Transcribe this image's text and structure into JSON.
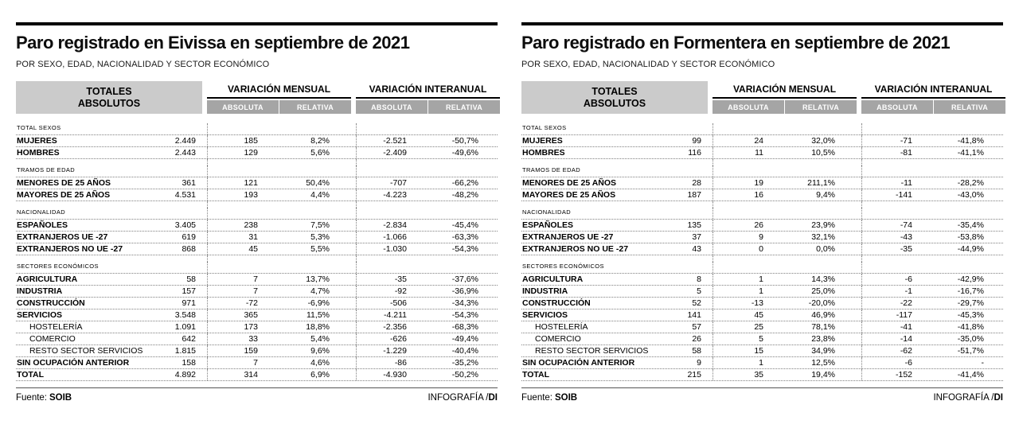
{
  "colors": {
    "totals_header_bg": "#cbcbcb",
    "subheader_bg": "#a5a5a5",
    "subheader_text": "#ffffff",
    "top_rule": "#000000",
    "dotted_line": "#808080"
  },
  "chart_data": [
    {
      "type": "table",
      "title": "Paro registrado en Eivissa en septiembre de 2021",
      "subtitle": "POR SEXO, EDAD, NACIONALIDAD Y SECTOR ECONÓMICO",
      "headers": {
        "totals_line1": "TOTALES",
        "totals_line2": "ABSOLUTOS",
        "monthly": "VARIACIÓN MENSUAL",
        "interannual": "VARIACIÓN INTERANUAL",
        "absolute": "ABSOLUTA",
        "relative": "RELATIVA"
      },
      "rows": [
        {
          "type": "section",
          "label": "TOTAL SEXOS"
        },
        {
          "type": "data",
          "label": "MUJERES",
          "values": [
            "2.449",
            "185",
            "8,2%",
            "-2.521",
            "-50,7%"
          ]
        },
        {
          "type": "data",
          "label": "HOMBRES",
          "values": [
            "2.443",
            "129",
            "5,6%",
            "-2.409",
            "-49,6%"
          ]
        },
        {
          "type": "gap"
        },
        {
          "type": "section",
          "label": "TRAMOS DE EDAD"
        },
        {
          "type": "data",
          "label": "MENORES DE 25 AÑOS",
          "values": [
            "361",
            "121",
            "50,4%",
            "-707",
            "-66,2%"
          ]
        },
        {
          "type": "data",
          "label": "MAYORES DE 25 AÑOS",
          "values": [
            "4.531",
            "193",
            "4,4%",
            "-4.223",
            "-48,2%"
          ]
        },
        {
          "type": "gap"
        },
        {
          "type": "section",
          "label": "NACIONALIDAD"
        },
        {
          "type": "data",
          "label": "ESPAÑOLES",
          "values": [
            "3.405",
            "238",
            "7,5%",
            "-2.834",
            "-45,4%"
          ]
        },
        {
          "type": "data",
          "label": "EXTRANJEROS UE -27",
          "values": [
            "619",
            "31",
            "5,3%",
            "-1.066",
            "-63,3%"
          ]
        },
        {
          "type": "data",
          "label": "EXTRANJEROS NO UE -27",
          "values": [
            "868",
            "45",
            "5,5%",
            "-1.030",
            "-54,3%"
          ]
        },
        {
          "type": "gap"
        },
        {
          "type": "section",
          "label": "SECTORES ECONÓMICOS"
        },
        {
          "type": "data",
          "label": "AGRICULTURA",
          "values": [
            "58",
            "7",
            "13,7%",
            "-35",
            "-37,6%"
          ]
        },
        {
          "type": "data",
          "label": "INDUSTRIA",
          "values": [
            "157",
            "7",
            "4,7%",
            "-92",
            "-36,9%"
          ]
        },
        {
          "type": "data",
          "label": "CONSTRUCCIÓN",
          "values": [
            "971",
            "-72",
            "-6,9%",
            "-506",
            "-34,3%"
          ]
        },
        {
          "type": "data",
          "label": "SERVICIOS",
          "values": [
            "3.548",
            "365",
            "11,5%",
            "-4.211",
            "-54,3%"
          ]
        },
        {
          "type": "data",
          "label": "HOSTELERÍA",
          "indent": true,
          "values": [
            "1.091",
            "173",
            "18,8%",
            "-2.356",
            "-68,3%"
          ]
        },
        {
          "type": "data",
          "label": "COMERCIO",
          "indent": true,
          "values": [
            "642",
            "33",
            "5,4%",
            "-626",
            "-49,4%"
          ]
        },
        {
          "type": "data",
          "label": "RESTO SECTOR SERVICIOS",
          "indent": true,
          "values": [
            "1.815",
            "159",
            "9,6%",
            "-1.229",
            "-40,4%"
          ]
        },
        {
          "type": "data",
          "label": "SIN OCUPACIÓN ANTERIOR",
          "values": [
            "158",
            "7",
            "4,6%",
            "-86",
            "-35,2%"
          ]
        },
        {
          "type": "data",
          "label": "TOTAL",
          "values": [
            "4.892",
            "314",
            "6,9%",
            "-4.930",
            "-50,2%"
          ]
        }
      ],
      "footer": {
        "source_prefix": "Fuente:",
        "source_name": "SOIB",
        "credit_prefix": "INFOGRAFÍA /",
        "credit_name": "DI"
      }
    },
    {
      "type": "table",
      "title": "Paro registrado en Formentera en septiembre de 2021",
      "subtitle": "POR SEXO, EDAD, NACIONALIDAD Y SECTOR ECONÓMICO",
      "headers": {
        "totals_line1": "TOTALES",
        "totals_line2": "ABSOLUTOS",
        "monthly": "VARIACIÓN MENSUAL",
        "interannual": "VARIACIÓN INTERANUAL",
        "absolute": "ABSOLUTA",
        "relative": "RELATIVA"
      },
      "rows": [
        {
          "type": "section",
          "label": "TOTAL SEXOS"
        },
        {
          "type": "data",
          "label": "MUJERES",
          "values": [
            "99",
            "24",
            "32,0%",
            "-71",
            "-41,8%"
          ]
        },
        {
          "type": "data",
          "label": "HOMBRES",
          "values": [
            "116",
            "11",
            "10,5%",
            "-81",
            "-41,1%"
          ]
        },
        {
          "type": "gap"
        },
        {
          "type": "section",
          "label": "TRAMOS DE EDAD"
        },
        {
          "type": "data",
          "label": "MENORES DE 25 AÑOS",
          "values": [
            "28",
            "19",
            "211,1%",
            "-11",
            "-28,2%"
          ]
        },
        {
          "type": "data",
          "label": "MAYORES DE 25 AÑOS",
          "values": [
            "187",
            "16",
            "9,4%",
            "-141",
            "-43,0%"
          ]
        },
        {
          "type": "gap"
        },
        {
          "type": "section",
          "label": "NACIONALIDAD"
        },
        {
          "type": "data",
          "label": "ESPAÑOLES",
          "values": [
            "135",
            "26",
            "23,9%",
            "-74",
            "-35,4%"
          ]
        },
        {
          "type": "data",
          "label": "EXTRANJEROS UE -27",
          "values": [
            "37",
            "9",
            "32,1%",
            "-43",
            "-53,8%"
          ]
        },
        {
          "type": "data",
          "label": "EXTRANJEROS NO UE -27",
          "values": [
            "43",
            "0",
            "0,0%",
            "-35",
            "-44,9%"
          ]
        },
        {
          "type": "gap"
        },
        {
          "type": "section",
          "label": "SECTORES ECONÓMICOS"
        },
        {
          "type": "data",
          "label": "AGRICULTURA",
          "values": [
            "8",
            "1",
            "14,3%",
            "-6",
            "-42,9%"
          ]
        },
        {
          "type": "data",
          "label": "INDUSTRIA",
          "values": [
            "5",
            "1",
            "25,0%",
            "-1",
            "-16,7%"
          ]
        },
        {
          "type": "data",
          "label": "CONSTRUCCIÓN",
          "values": [
            "52",
            "-13",
            "-20,0%",
            "-22",
            "-29,7%"
          ]
        },
        {
          "type": "data",
          "label": "SERVICIOS",
          "values": [
            "141",
            "45",
            "46,9%",
            "-117",
            "-45,3%"
          ]
        },
        {
          "type": "data",
          "label": "HOSTELERÍA",
          "indent": true,
          "values": [
            "57",
            "25",
            "78,1%",
            "-41",
            "-41,8%"
          ]
        },
        {
          "type": "data",
          "label": "COMERCIO",
          "indent": true,
          "values": [
            "26",
            "5",
            "23,8%",
            "-14",
            "-35,0%"
          ]
        },
        {
          "type": "data",
          "label": "RESTO SECTOR SERVICIOS",
          "indent": true,
          "values": [
            "58",
            "15",
            "34,9%",
            "-62",
            "-51,7%"
          ]
        },
        {
          "type": "data",
          "label": "SIN OCUPACIÓN ANTERIOR",
          "values": [
            "9",
            "1",
            "12,5%",
            "-6",
            "-"
          ]
        },
        {
          "type": "data",
          "label": "TOTAL",
          "values": [
            "215",
            "35",
            "19,4%",
            "-152",
            "-41,4%"
          ]
        }
      ],
      "footer": {
        "source_prefix": "Fuente:",
        "source_name": "SOIB",
        "credit_prefix": "INFOGRAFÍA /",
        "credit_name": "DI"
      }
    }
  ]
}
